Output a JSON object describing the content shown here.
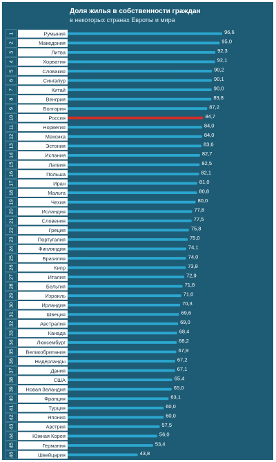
{
  "chart_data": {
    "type": "bar",
    "orientation": "horizontal",
    "title": "Доля жилья в собственности граждан",
    "subtitle": "в некоторых странах Европы и мира",
    "ranks": [
      "1",
      "2",
      "3",
      "4",
      "5",
      "6",
      "7",
      "8",
      "9",
      "10",
      "11",
      "12",
      "13",
      "14",
      "15",
      "16",
      "17",
      "18",
      "19",
      "20",
      "21",
      "22",
      "23",
      "24",
      "25",
      "26",
      "27",
      "28",
      "29",
      "30",
      "31",
      "32",
      "33",
      "34",
      "35",
      "36",
      "37",
      "38",
      "39",
      "40",
      "41",
      "42",
      "43",
      "44",
      "45",
      "46"
    ],
    "categories": [
      "Румыния",
      "Македония",
      "Литва",
      "Хорватия",
      "Словакия",
      "Сингапур",
      "Китай",
      "Венгрия",
      "Болгария",
      "Россия",
      "Норвегия",
      "Мексика",
      "Эстония",
      "Испания",
      "Латвия",
      "Польша",
      "Иран",
      "Мальта",
      "Чехия",
      "Исландия",
      "Словения",
      "Греция",
      "Португалия",
      "Финляндия",
      "Бразилия",
      "Кипр",
      "Италия",
      "Бельгия",
      "Израиль",
      "Ирландия",
      "Швеция",
      "Австралия",
      "Канада",
      "Люксембург",
      "Великобритания",
      "Нидерланды",
      "Дания",
      "США",
      "Новая Зеландия",
      "Франция",
      "Турция",
      "Япония",
      "Австрия",
      "Южная Корея",
      "Германия",
      "Швейцария"
    ],
    "values": [
      96.6,
      95.0,
      92.3,
      92.1,
      90.2,
      90.1,
      90.0,
      89.8,
      87.2,
      84.7,
      84.0,
      84.0,
      83.6,
      82.7,
      82.5,
      82.1,
      81.0,
      80.8,
      80.0,
      77.8,
      77.5,
      75.8,
      75.0,
      74.1,
      74.0,
      73.8,
      72.9,
      71.8,
      71.0,
      70.3,
      69.6,
      69.0,
      68.4,
      68.2,
      67.9,
      67.2,
      67.1,
      65.4,
      65.0,
      63.1,
      60.0,
      60.0,
      57.5,
      56.0,
      53.4,
      43.8
    ],
    "value_labels": [
      "96,6",
      "95,0",
      "92,3",
      "92,1",
      "90,2",
      "90,1",
      "90,0",
      "89,8",
      "87,2",
      "84,7",
      "84,0",
      "84,0",
      "83,6",
      "82,7",
      "82,5",
      "82,1",
      "81,0",
      "80,8",
      "80,0",
      "77,8",
      "77,5",
      "75,8",
      "75,0",
      "74,1",
      "74,0",
      "73,8",
      "72,9",
      "71,8",
      "71,0",
      "70,3",
      "69,6",
      "69,0",
      "68,4",
      "68,2",
      "67,9",
      "67,2",
      "67,1",
      "65,4",
      "65,0",
      "63,1",
      "60,0",
      "60,0",
      "57,5",
      "56,0",
      "53,4",
      "43,8"
    ],
    "highlight": "Россия",
    "xlim": [
      0,
      100
    ],
    "grid": false,
    "legend": "none",
    "colors": {
      "background": "#1e5c75",
      "bar": "#2ba6cf",
      "bar_highlight": "#d62b24",
      "label_box": "#ffffff",
      "text_light": "#ffffff",
      "text_dark": "#1c3240"
    }
  }
}
